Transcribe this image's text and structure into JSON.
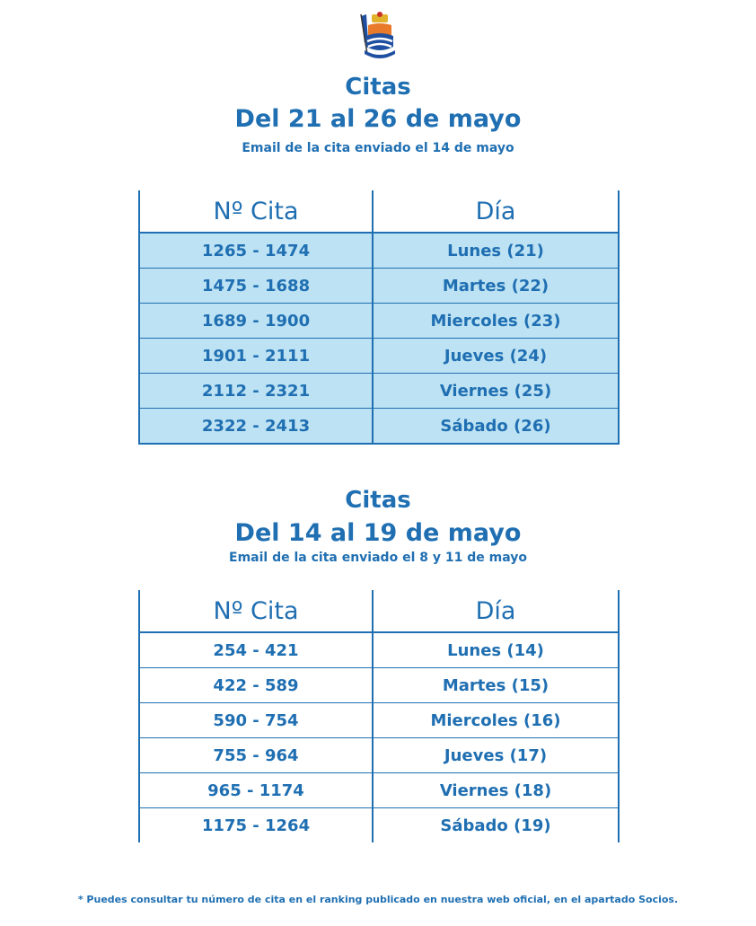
{
  "section1": {
    "title": "Citas",
    "dates": "Del 21 al 26 de mayo",
    "email_note": "Email de la cita enviado el 14 de mayo",
    "headers": [
      "Nº Cita",
      "Día"
    ],
    "rows": [
      {
        "range": "1265 - 1474",
        "day": "Lunes (21)"
      },
      {
        "range": "1475 - 1688",
        "day": "Martes (22)"
      },
      {
        "range": "1689 - 1900",
        "day": "Miercoles (23)"
      },
      {
        "range": "1901 - 2111",
        "day": "Jueves (24)"
      },
      {
        "range": "2112 - 2321",
        "day": "Viernes (25)"
      },
      {
        "range": "2322 - 2413",
        "day": "Sábado (26)"
      }
    ]
  },
  "section2": {
    "title": "Citas",
    "dates": "Del 14 al 19 de mayo",
    "email_note": "Email de la cita enviado el 8 y 11 de mayo",
    "headers": [
      "Nº Cita",
      "Día"
    ],
    "rows": [
      {
        "range": "254 - 421",
        "day": "Lunes (14)"
      },
      {
        "range": "422 - 589",
        "day": "Martes (15)"
      },
      {
        "range": "590 - 754",
        "day": "Miercoles (16)"
      },
      {
        "range": "755 - 964",
        "day": "Jueves (17)"
      },
      {
        "range": "965 - 1174",
        "day": "Viernes (18)"
      },
      {
        "range": "1175 - 1264",
        "day": "Sábado (19)"
      }
    ]
  },
  "footnote": "* Puedes consultar tu número de cita en el ranking publicado en nuestra web oficial, en el apartado Socios.",
  "colors": {
    "text": "#1f6fb2",
    "row_fill": "#bde2f3"
  },
  "logo": {
    "icon": "club-crest-icon"
  }
}
